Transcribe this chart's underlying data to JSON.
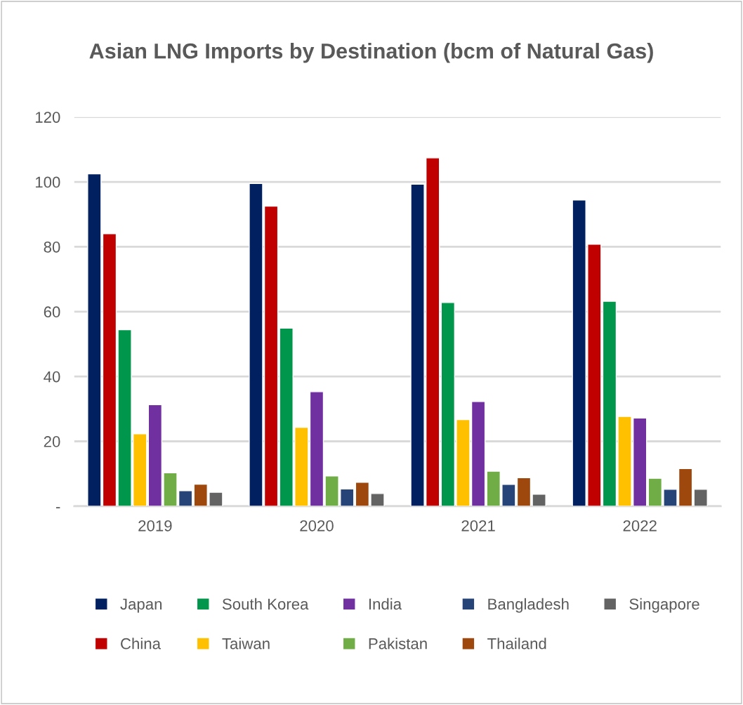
{
  "chart_data": {
    "type": "bar",
    "title": "Asian LNG Imports by Destination (bcm of Natural Gas)",
    "categories": [
      "2019",
      "2020",
      "2021",
      "2022"
    ],
    "series": [
      {
        "name": "Japan",
        "color": "#002060",
        "values": [
          102.5,
          99.5,
          99.3,
          94.4
        ]
      },
      {
        "name": "China",
        "color": "#c00000",
        "values": [
          84,
          92.5,
          107.4,
          80.8
        ]
      },
      {
        "name": "South Korea",
        "color": "#00964b",
        "values": [
          54.4,
          54.9,
          62.8,
          63.2
        ]
      },
      {
        "name": "Taiwan",
        "color": "#ffc000",
        "values": [
          22.3,
          24.3,
          26.7,
          27.7
        ]
      },
      {
        "name": "India",
        "color": "#7030a0",
        "values": [
          31.3,
          35.3,
          32.3,
          27.2
        ]
      },
      {
        "name": "Pakistan",
        "color": "#70ad47",
        "values": [
          10.3,
          9.3,
          10.8,
          8.6
        ]
      },
      {
        "name": "Bangladesh",
        "color": "#264478",
        "values": [
          4.8,
          5.3,
          6.7,
          5.2
        ]
      },
      {
        "name": "Thailand",
        "color": "#9e480e",
        "values": [
          6.8,
          7.4,
          8.8,
          11.6
        ]
      },
      {
        "name": "Singapore",
        "color": "#636363",
        "values": [
          4.3,
          3.9,
          3.7,
          5.2
        ]
      }
    ],
    "ylim": [
      0,
      120
    ],
    "yticks": [
      {
        "value": 0,
        "label": "-"
      },
      20,
      40,
      60,
      80,
      100,
      120
    ],
    "grid": "y",
    "legend": "bottom"
  }
}
